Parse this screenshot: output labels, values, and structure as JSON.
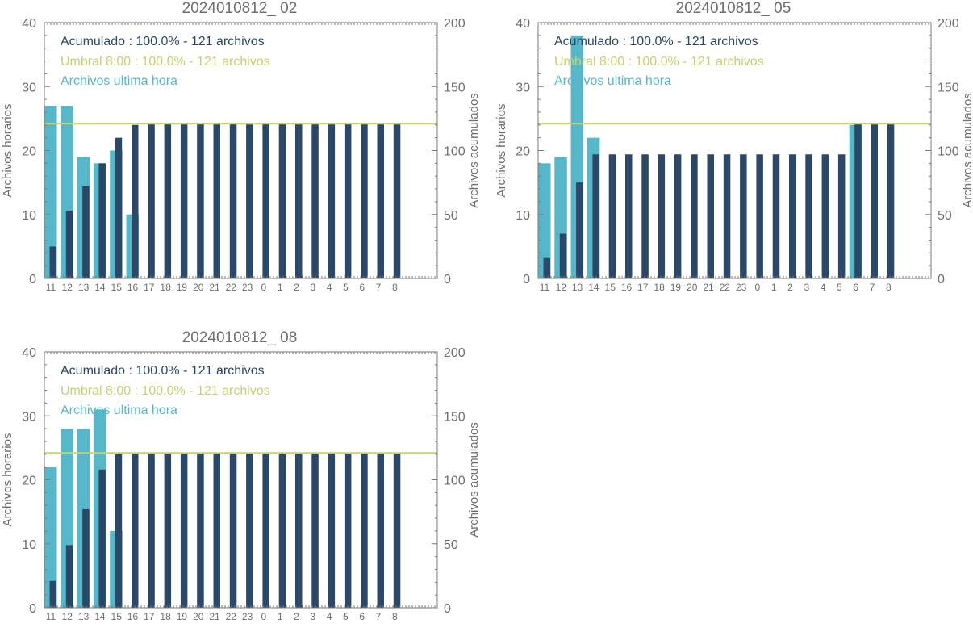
{
  "colors": {
    "hourly": "#56B7C9",
    "cumulative": "#2C4869",
    "threshold": "#C4D36B",
    "axis": "#7a7a7a",
    "text": "#6e6e6e"
  },
  "chart_data": [
    {
      "type": "bar",
      "title": "2024010812_ 02",
      "ylabel": "Archivos horarios",
      "y2label": "Archivos acumulados",
      "ylim": [
        0,
        40
      ],
      "y2lim": [
        0,
        200
      ],
      "yticks": [
        0,
        10,
        20,
        30,
        40
      ],
      "y2ticks": [
        0,
        50,
        100,
        150,
        200
      ],
      "categories": [
        "11",
        "12",
        "13",
        "14",
        "15",
        "16",
        "17",
        "18",
        "19",
        "20",
        "21",
        "22",
        "23",
        "0",
        "1",
        "2",
        "3",
        "4",
        "5",
        "6",
        "7",
        "8"
      ],
      "legend": {
        "cumulative": "Acumulado : 100.0% - 121 archivos",
        "threshold": "Umbral 8:00 : 100.0% - 121 archivos",
        "hourly": "Archivos ultima hora"
      },
      "series": [
        {
          "key": "hourly",
          "values": [
            27,
            27,
            19,
            18,
            20,
            10,
            0,
            0,
            0,
            0,
            0,
            0,
            0,
            0,
            0,
            0,
            0,
            0,
            0,
            0,
            0,
            0
          ]
        },
        {
          "key": "cumulative",
          "values": [
            25,
            53,
            72,
            90,
            110,
            120,
            121,
            121,
            121,
            121,
            121,
            121,
            121,
            121,
            121,
            121,
            121,
            121,
            121,
            121,
            121,
            121
          ]
        }
      ],
      "threshold_value": 121
    },
    {
      "type": "bar",
      "title": "2024010812_ 05",
      "ylabel": "Archivos horarios",
      "y2label": "Archivos acumulados",
      "ylim": [
        0,
        40
      ],
      "y2lim": [
        0,
        200
      ],
      "yticks": [
        0,
        10,
        20,
        30,
        40
      ],
      "y2ticks": [
        0,
        50,
        100,
        150,
        200
      ],
      "categories": [
        "11",
        "12",
        "13",
        "14",
        "15",
        "16",
        "17",
        "18",
        "19",
        "20",
        "21",
        "22",
        "23",
        "0",
        "1",
        "2",
        "3",
        "4",
        "5",
        "6",
        "7",
        "8"
      ],
      "legend": {
        "cumulative": "Acumulado : 100.0% - 121 archivos",
        "threshold": "Umbral 8:00 : 100.0% - 121 archivos",
        "hourly": "Archivos ultima hora"
      },
      "series": [
        {
          "key": "hourly",
          "values": [
            18,
            19,
            38,
            22,
            0,
            0,
            0,
            0,
            0,
            0,
            0,
            0,
            0,
            0,
            0,
            0,
            0,
            0,
            0,
            24,
            0,
            0
          ]
        },
        {
          "key": "cumulative",
          "values": [
            16,
            35,
            75,
            97,
            97,
            97,
            97,
            97,
            97,
            97,
            97,
            97,
            97,
            97,
            97,
            97,
            97,
            97,
            97,
            121,
            121,
            121
          ]
        }
      ],
      "threshold_value": 121
    },
    {
      "type": "bar",
      "title": "2024010812_ 08",
      "ylabel": "Archivos horarios",
      "y2label": "Archivos acumulados",
      "ylim": [
        0,
        40
      ],
      "y2lim": [
        0,
        200
      ],
      "yticks": [
        0,
        10,
        20,
        30,
        40
      ],
      "y2ticks": [
        0,
        50,
        100,
        150,
        200
      ],
      "categories": [
        "11",
        "12",
        "13",
        "14",
        "15",
        "16",
        "17",
        "18",
        "19",
        "20",
        "21",
        "22",
        "23",
        "0",
        "1",
        "2",
        "3",
        "4",
        "5",
        "6",
        "7",
        "8"
      ],
      "legend": {
        "cumulative": "Acumulado : 100.0% - 121 archivos",
        "threshold": "Umbral 8:00 : 100.0% - 121 archivos",
        "hourly": "Archivos ultima hora"
      },
      "series": [
        {
          "key": "hourly",
          "values": [
            22,
            28,
            28,
            31,
            12,
            0,
            0,
            0,
            0,
            0,
            0,
            0,
            0,
            0,
            0,
            0,
            0,
            0,
            0,
            0,
            0,
            0
          ]
        },
        {
          "key": "cumulative",
          "values": [
            21,
            49,
            77,
            108,
            120,
            121,
            121,
            121,
            121,
            121,
            121,
            121,
            121,
            121,
            121,
            121,
            121,
            121,
            121,
            121,
            121,
            121
          ]
        }
      ],
      "threshold_value": 121
    }
  ]
}
